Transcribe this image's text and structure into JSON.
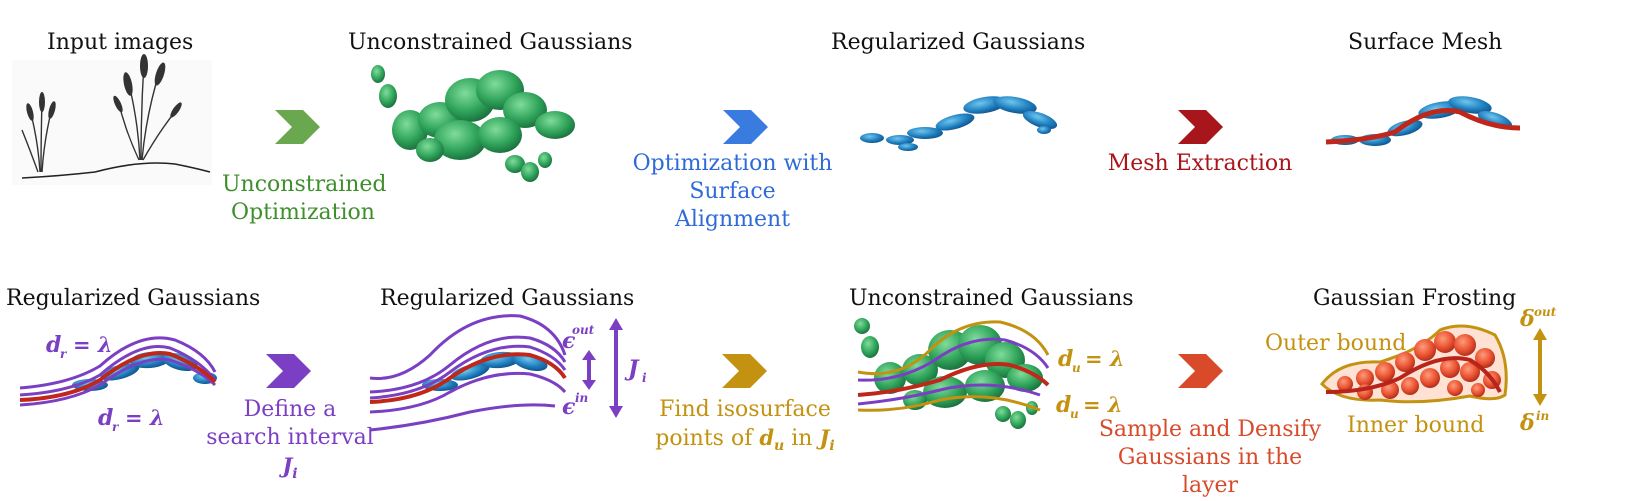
{
  "top_row": {
    "titles": {
      "input": "Input images",
      "unconstrained": "Unconstrained Gaussians",
      "regularized": "Regularized Gaussians",
      "surface": "Surface Mesh"
    },
    "steps": {
      "unconstrained_opt": "Unconstrained Optimization",
      "optimization_align": "Optimization with Surface Alignment",
      "mesh_extraction": "Mesh Extraction"
    }
  },
  "bottom_row": {
    "titles": {
      "regularized_1": "Regularized Gaussians",
      "regularized_2": "Regularized Gaussians",
      "unconstrained": "Unconstrained Gaussians",
      "frosting": "Gaussian Frosting"
    },
    "steps": {
      "search_interval": "Define a search interval",
      "find_iso_1": "Find isosurface",
      "find_iso_2": "points of",
      "find_iso_in": "in",
      "sample_densify": "Sample and Densify Gaussians in the layer"
    },
    "math": {
      "dr_upper": "d",
      "dr_sub": "r",
      "eq_lambda": "= λ",
      "J": "J",
      "J_sub": "i",
      "eps": "ϵ",
      "out": "out",
      "in": "in",
      "du": "d",
      "du_sub": "u",
      "delta": "δ"
    },
    "bounds": {
      "outer": "Outer bound",
      "inner": "Inner bound"
    }
  },
  "colors": {
    "green": "#3e8f2c",
    "blue": "#2f6bd8",
    "red": "#a8151a",
    "purple": "#7b3fc4",
    "gold": "#c39210",
    "orange_red": "#d84a2a"
  }
}
